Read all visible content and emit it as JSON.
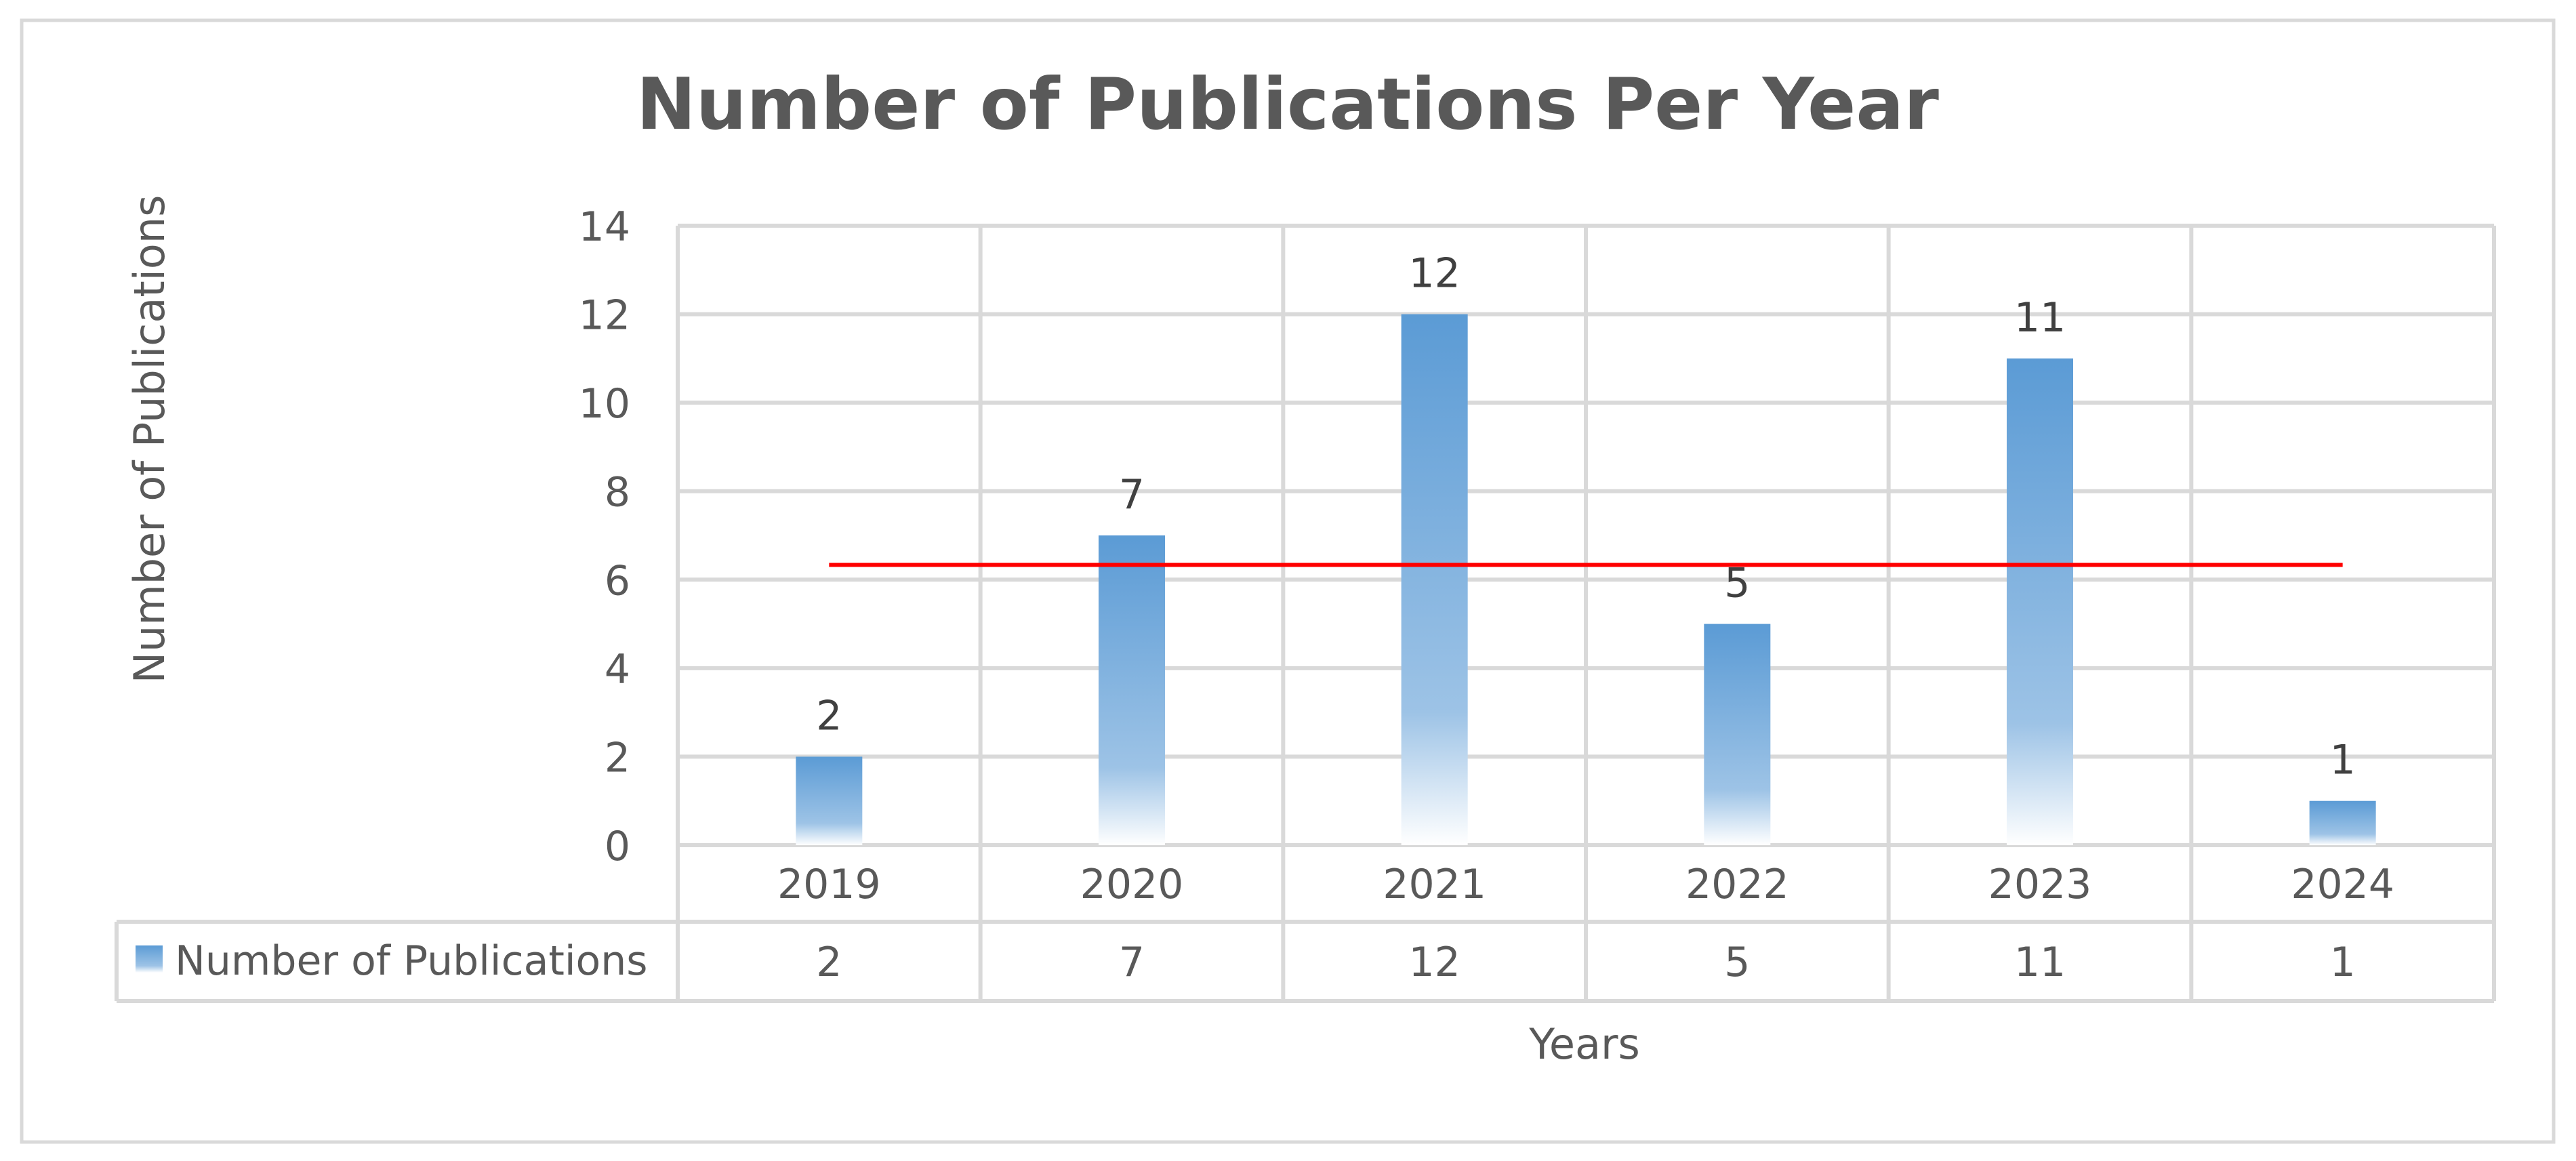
{
  "chart_data": {
    "type": "bar",
    "title": "Number of Publications Per Year",
    "xlabel": "Years",
    "ylabel": "Number of Publications",
    "categories": [
      "2019",
      "2020",
      "2021",
      "2022",
      "2023",
      "2024"
    ],
    "series": [
      {
        "name": "Number of Publications",
        "values": [
          2,
          7,
          12,
          5,
          11,
          1
        ]
      }
    ],
    "yticks": [
      0,
      2,
      4,
      6,
      8,
      10,
      12,
      14
    ],
    "ylim": [
      0,
      14
    ],
    "grid": true,
    "data_labels": true,
    "data_table": true,
    "trendline": {
      "type": "linear",
      "color": "#ff0000"
    },
    "colors": {
      "bar_top": "#5b9bd5",
      "bar_bottom": "#ffffff",
      "trendline": "#ff0000",
      "gridline": "#d9d9d9",
      "frame": "#d9d9d9",
      "text": "#595959"
    }
  }
}
